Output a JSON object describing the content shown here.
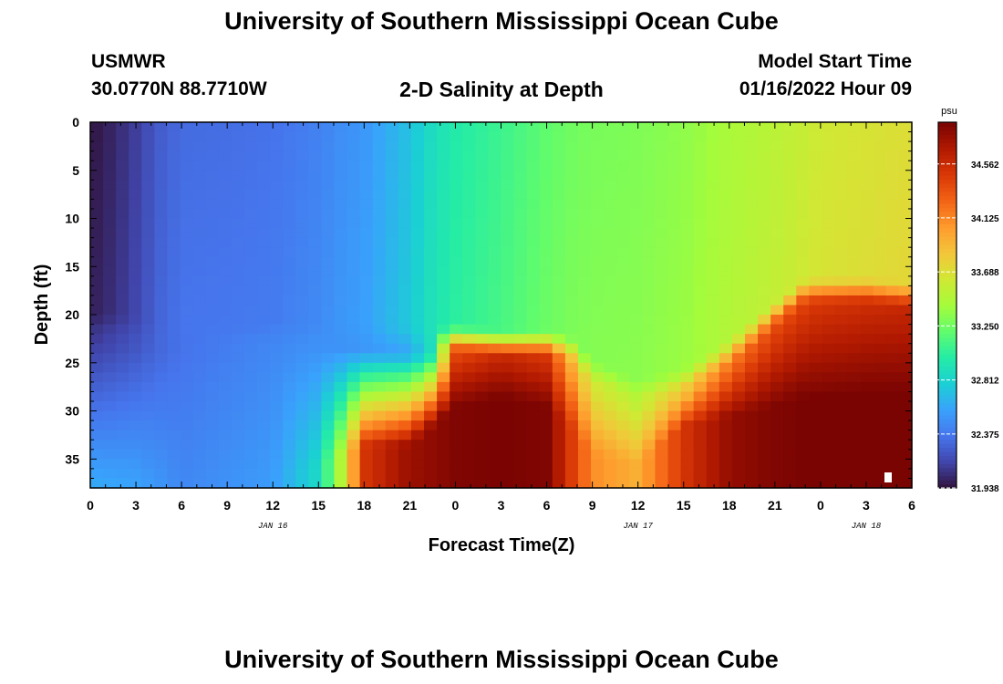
{
  "title": "University of Southern Mississippi Ocean Cube",
  "title_repeat": "University of Southern Mississippi Ocean Cube",
  "station": {
    "name": "USMWR",
    "coords": "30.0770N  88.7710W"
  },
  "model": {
    "label": "Model Start Time",
    "time": "01/16/2022 Hour 09"
  },
  "chart_data": {
    "type": "heatmap",
    "title": "2-D Salinity at Depth",
    "xlabel": "Forecast Time(Z)",
    "ylabel": "Depth (ft)",
    "x_ticks": [
      "0",
      "3",
      "6",
      "9",
      "12",
      "15",
      "18",
      "21",
      "0",
      "3",
      "6",
      "9",
      "12",
      "15",
      "18",
      "21",
      "0",
      "3",
      "6"
    ],
    "x_hours": [
      0,
      3,
      6,
      9,
      12,
      15,
      18,
      21,
      24,
      27,
      30,
      33,
      36,
      39,
      42,
      45,
      48,
      51,
      54
    ],
    "x_range_hours": [
      0,
      54
    ],
    "date_labels": [
      {
        "text": "JAN 16",
        "hour": 12
      },
      {
        "text": "JAN 17",
        "hour": 36
      },
      {
        "text": "JAN 18",
        "hour": 51
      }
    ],
    "y_ticks": [
      0,
      5,
      10,
      15,
      20,
      25,
      30,
      35
    ],
    "y_range_ft": [
      0,
      38
    ],
    "colorbar": {
      "unit": "psu",
      "min": 31.938,
      "max": 34.9,
      "ticks": [
        34.562,
        34.125,
        33.688,
        33.25,
        32.812,
        32.375,
        31.938
      ],
      "tick_labels": [
        "34.562",
        "34.125",
        "33.688",
        "33.250",
        "32.812",
        "32.375",
        "31.938"
      ],
      "colormap": [
        "#30123b",
        "#4145ab",
        "#4675ed",
        "#39a2fc",
        "#1bcfd4",
        "#24eca6",
        "#61fc6c",
        "#a4fc3b",
        "#d1e834",
        "#f3c63a",
        "#fe9b2d",
        "#f36315",
        "#d93806",
        "#b11901",
        "#7a0402"
      ]
    },
    "profile": {
      "hours": [
        0,
        1.5,
        3,
        4.5,
        6,
        9,
        12,
        15,
        16.5,
        18,
        21,
        22.5,
        24,
        27,
        30,
        31.5,
        33,
        36,
        39,
        42,
        45,
        47,
        48,
        51,
        54
      ],
      "surface": [
        31.95,
        32.02,
        32.12,
        32.25,
        32.32,
        32.33,
        32.35,
        32.42,
        32.48,
        32.52,
        32.72,
        32.88,
        32.98,
        33.08,
        33.2,
        33.25,
        33.28,
        33.3,
        33.35,
        33.45,
        33.52,
        33.58,
        33.62,
        33.66,
        33.7
      ],
      "thermo_ft": [
        21,
        21,
        21.5,
        22,
        22,
        22,
        22,
        22,
        22,
        22.2,
        22.5,
        22.5,
        22.5,
        23,
        23,
        23.5,
        26,
        28,
        27,
        24,
        20,
        17.5,
        17.5,
        17.5,
        18
      ],
      "bottom": [
        32.62,
        32.6,
        32.58,
        32.52,
        32.45,
        32.5,
        32.55,
        32.85,
        33.5,
        34.5,
        34.78,
        34.82,
        34.88,
        34.9,
        34.88,
        34.5,
        34.1,
        33.95,
        34.5,
        34.8,
        34.88,
        34.9,
        34.9,
        34.92,
        34.92
      ],
      "lower_top": [
        32.1,
        32.15,
        32.22,
        32.3,
        32.35,
        32.4,
        32.45,
        32.5,
        32.5,
        32.52,
        32.6,
        32.9,
        34.4,
        34.6,
        34.5,
        34.0,
        33.65,
        33.55,
        33.9,
        34.2,
        34.4,
        34.45,
        34.5,
        34.55,
        34.6
      ],
      "bottom_gap_ft": [
        0,
        0,
        0,
        0,
        0,
        0,
        2,
        4,
        5,
        6,
        6,
        8,
        10,
        11,
        10,
        8,
        5,
        4,
        8,
        9,
        10,
        11,
        11,
        11,
        11
      ]
    }
  }
}
